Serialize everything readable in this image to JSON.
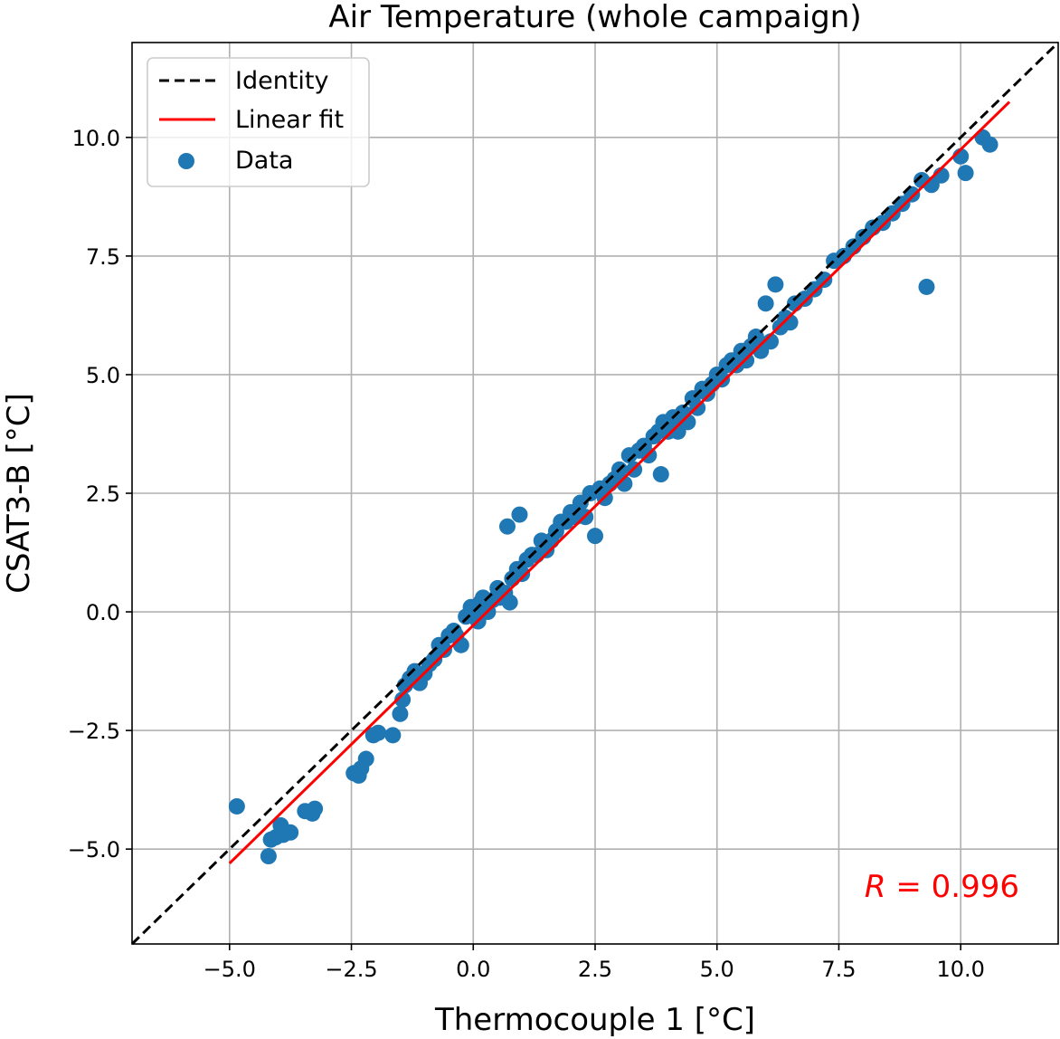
{
  "chart_data": {
    "type": "scatter",
    "title": "Air Temperature (whole campaign)",
    "xlabel": "Thermocouple 1 [°C]",
    "ylabel": "CSAT3-B [°C]",
    "xlim": [
      -7.0,
      12.0
    ],
    "ylim": [
      -7.0,
      12.0
    ],
    "grid": true,
    "legend_position": "top-left",
    "xticks": [
      -5.0,
      -2.5,
      0.0,
      2.5,
      5.0,
      7.5,
      10.0
    ],
    "yticks": [
      -5.0,
      -2.5,
      0.0,
      2.5,
      5.0,
      7.5,
      10.0
    ],
    "xtick_labels": [
      "−5.0",
      "−2.5",
      "0.0",
      "2.5",
      "5.0",
      "7.5",
      "10.0"
    ],
    "ytick_labels": [
      "−5.0",
      "−2.5",
      "0.0",
      "2.5",
      "5.0",
      "7.5",
      "10.0"
    ],
    "legend": [
      {
        "label": "Identity",
        "style": "dashed-line",
        "color": "#000000"
      },
      {
        "label": "Linear fit",
        "style": "solid-line",
        "color": "#ff0000"
      },
      {
        "label": "Data",
        "style": "marker",
        "color": "#1f77b4"
      }
    ],
    "annotation": {
      "symbol": "R",
      "text": " = 0.996",
      "color": "#ff0000",
      "position": "bottom-right"
    },
    "series": [
      {
        "name": "Identity",
        "kind": "line",
        "x": [
          -7.0,
          12.0
        ],
        "y": [
          -7.0,
          12.0
        ]
      },
      {
        "name": "Linear fit",
        "kind": "line",
        "x": [
          -5.0,
          11.0
        ],
        "y": [
          -5.3,
          10.75
        ]
      },
      {
        "name": "Data",
        "kind": "scatter",
        "x": [
          -4.85,
          -4.2,
          -4.15,
          -4.05,
          -3.95,
          -3.9,
          -3.75,
          -3.45,
          -3.3,
          -3.25,
          -2.45,
          -2.35,
          -2.3,
          -2.2,
          -2.05,
          -1.95,
          -1.65,
          -1.5,
          -1.45,
          -1.4,
          -1.3,
          -1.2,
          -1.1,
          -1.0,
          -0.9,
          -0.8,
          -0.7,
          -0.6,
          -0.5,
          -0.4,
          -0.35,
          -0.25,
          -0.15,
          -0.05,
          0.05,
          0.1,
          0.15,
          0.2,
          0.3,
          0.4,
          0.5,
          0.55,
          0.65,
          0.7,
          0.75,
          0.8,
          0.9,
          0.95,
          1.0,
          1.1,
          1.2,
          1.3,
          1.4,
          1.5,
          1.6,
          1.7,
          1.8,
          1.9,
          2.0,
          2.1,
          2.2,
          2.3,
          2.4,
          2.5,
          2.6,
          2.7,
          2.8,
          2.9,
          3.0,
          3.1,
          3.2,
          3.3,
          3.4,
          3.5,
          3.6,
          3.7,
          3.8,
          3.85,
          3.9,
          4.0,
          4.1,
          4.2,
          4.3,
          4.4,
          4.5,
          4.6,
          4.7,
          4.8,
          4.9,
          5.0,
          5.1,
          5.2,
          5.3,
          5.4,
          5.5,
          5.6,
          5.7,
          5.8,
          5.9,
          6.0,
          6.1,
          6.2,
          6.3,
          6.4,
          6.5,
          6.6,
          6.8,
          7.0,
          7.2,
          7.4,
          7.6,
          7.8,
          8.0,
          8.2,
          8.4,
          8.6,
          8.8,
          9.0,
          9.2,
          9.3,
          9.4,
          9.6,
          10.0,
          10.1,
          10.45,
          10.6
        ],
        "y": [
          -4.1,
          -5.15,
          -4.8,
          -4.75,
          -4.5,
          -4.7,
          -4.65,
          -4.2,
          -4.25,
          -4.15,
          -3.4,
          -3.45,
          -3.3,
          -3.1,
          -2.6,
          -2.55,
          -2.6,
          -2.15,
          -1.85,
          -1.55,
          -1.4,
          -1.25,
          -1.5,
          -1.3,
          -1.1,
          -1.0,
          -0.7,
          -0.8,
          -0.5,
          -0.4,
          -0.5,
          -0.7,
          -0.1,
          0.1,
          -0.1,
          -0.2,
          0.2,
          0.3,
          0.0,
          0.25,
          0.5,
          0.3,
          0.4,
          1.8,
          0.2,
          0.7,
          0.9,
          2.05,
          0.8,
          1.1,
          1.2,
          1.2,
          1.5,
          1.3,
          1.5,
          1.7,
          1.9,
          1.9,
          2.1,
          2.0,
          2.3,
          2.0,
          2.5,
          1.6,
          2.6,
          2.4,
          2.7,
          2.8,
          3.0,
          2.7,
          3.3,
          3.0,
          3.4,
          3.5,
          3.3,
          3.7,
          3.8,
          2.9,
          4.0,
          3.8,
          4.1,
          3.8,
          4.2,
          4.0,
          4.5,
          4.3,
          4.7,
          4.6,
          4.8,
          5.0,
          4.9,
          5.2,
          5.3,
          5.2,
          5.5,
          5.3,
          5.6,
          5.8,
          5.5,
          6.5,
          5.7,
          6.9,
          6.0,
          6.2,
          6.1,
          6.5,
          6.6,
          6.8,
          7.0,
          7.4,
          7.5,
          7.7,
          7.9,
          8.1,
          8.2,
          8.4,
          8.6,
          8.8,
          9.1,
          6.85,
          9.0,
          9.2,
          9.6,
          9.25,
          10.0,
          9.85
        ]
      }
    ]
  }
}
